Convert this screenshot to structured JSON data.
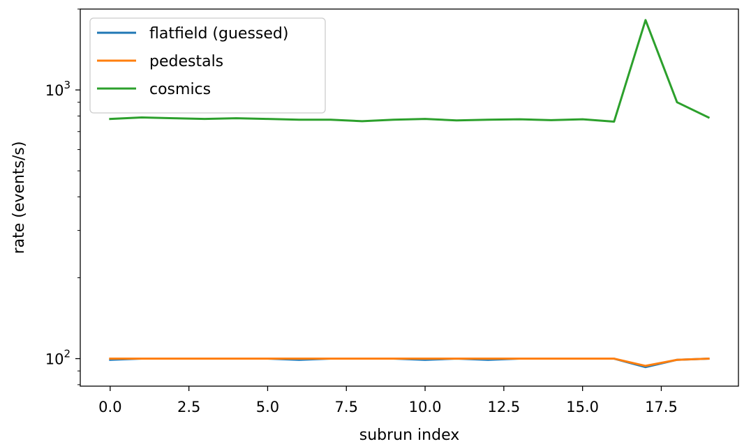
{
  "chart_data": {
    "type": "line",
    "title": "",
    "xlabel": "subrun index",
    "ylabel": "rate (events/s)",
    "yscale": "log",
    "xlim": [
      -0.95,
      19.95
    ],
    "ylim": [
      79,
      2000
    ],
    "grid": false,
    "legend_position": "top-left",
    "x": [
      0,
      1,
      2,
      3,
      4,
      5,
      6,
      7,
      8,
      9,
      10,
      11,
      12,
      13,
      14,
      15,
      16,
      17,
      18,
      19
    ],
    "xticks": [
      0.0,
      2.5,
      5.0,
      7.5,
      10.0,
      12.5,
      15.0,
      17.5
    ],
    "xtick_labels": [
      "0.0",
      "2.5",
      "5.0",
      "7.5",
      "10.0",
      "12.5",
      "15.0",
      "17.5"
    ],
    "yticks_major": [
      100,
      1000
    ],
    "ytick_labels": [
      {
        "base": "10",
        "exp": "2"
      },
      {
        "base": "10",
        "exp": "3"
      }
    ],
    "yticks_minor": [
      80,
      90,
      200,
      300,
      400,
      500,
      600,
      700,
      800,
      900,
      2000
    ],
    "series": [
      {
        "name": "flatfield (guessed)",
        "color": "#1f77b4",
        "values": [
          99,
          100,
          100,
          100,
          100,
          100,
          99,
          100,
          100,
          100,
          99,
          100,
          99,
          100,
          100,
          100,
          100,
          93,
          99,
          100
        ]
      },
      {
        "name": "pedestals",
        "color": "#ff7f0e",
        "values": [
          100,
          100,
          100,
          100,
          100,
          100,
          100,
          100,
          100,
          100,
          100,
          100,
          100,
          100,
          100,
          100,
          100,
          94,
          99,
          100
        ]
      },
      {
        "name": "cosmics",
        "color": "#2ca02c",
        "values": [
          780,
          790,
          785,
          780,
          785,
          780,
          775,
          775,
          765,
          775,
          780,
          770,
          775,
          778,
          772,
          778,
          762,
          1820,
          900,
          790
        ]
      }
    ]
  }
}
